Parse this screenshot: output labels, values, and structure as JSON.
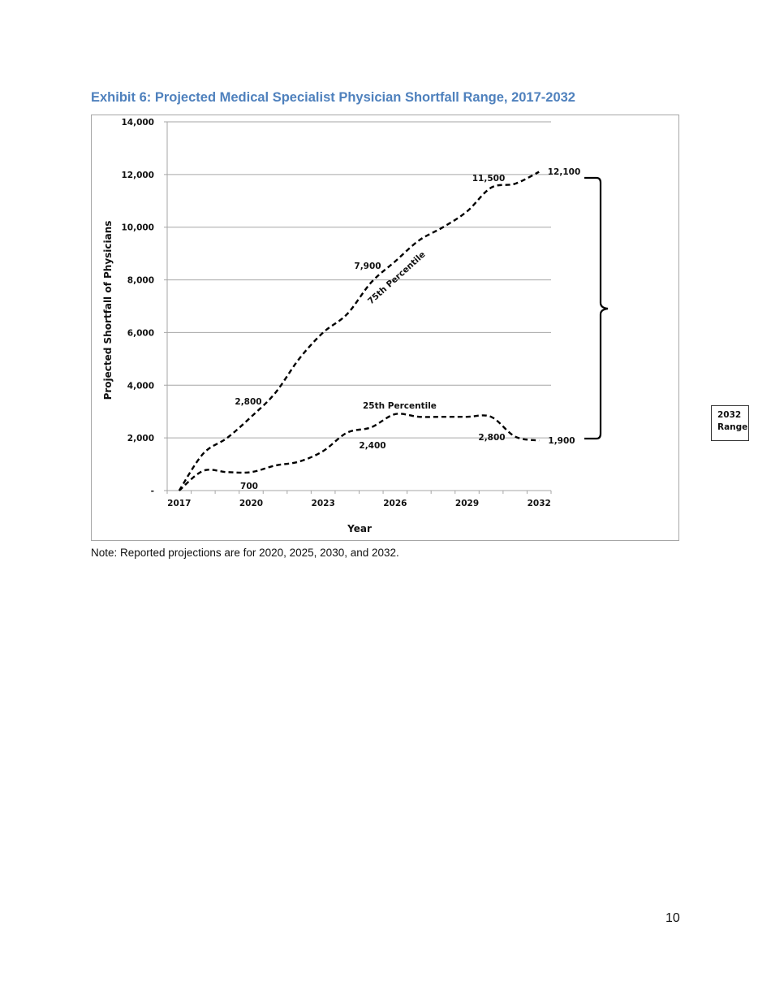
{
  "page": {
    "title": "Exhibit 6: Projected Medical Specialist Physician Shortfall Range, 2017-2032",
    "note": "Note: Reported projections are for 2020, 2025, 2030, and 2032.",
    "page_number": "10"
  },
  "range_box": {
    "line1": "2032",
    "line2": "Range"
  },
  "chart_data": {
    "type": "line",
    "title": "Exhibit 6: Projected Medical Specialist Physician Shortfall Range, 2017-2032",
    "xlabel": "Year",
    "ylabel": "Projected Shortfall of Physicians",
    "ylim": [
      0,
      14000
    ],
    "grid": true,
    "legend": "none (series labeled inline)",
    "x": [
      2017,
      2018,
      2019,
      2020,
      2021,
      2022,
      2023,
      2024,
      2025,
      2026,
      2027,
      2028,
      2029,
      2030,
      2031,
      2032
    ],
    "x_tick_labels": [
      "2017",
      "2020",
      "2023",
      "2026",
      "2029",
      "2032"
    ],
    "y_tick_labels": [
      "-",
      "2,000",
      "4,000",
      "6,000",
      "8,000",
      "10,000",
      "12,000",
      "14,000"
    ],
    "y_ticks": [
      0,
      2000,
      4000,
      6000,
      8000,
      10000,
      12000,
      14000
    ],
    "series": [
      {
        "name": "75th Percentile",
        "style": "dashed",
        "values": [
          0,
          1400,
          2000,
          2800,
          3700,
          5000,
          6000,
          6700,
          7900,
          8700,
          9500,
          10000,
          10600,
          11500,
          11650,
          12100
        ]
      },
      {
        "name": "25th Percentile",
        "style": "dashed",
        "values": [
          0,
          750,
          700,
          700,
          950,
          1100,
          1500,
          2200,
          2400,
          2900,
          2800,
          2800,
          2800,
          2800,
          2050,
          1900
        ]
      }
    ],
    "annotations": [
      {
        "text": "2,800",
        "x": 2020,
        "series": "75th Percentile"
      },
      {
        "text": "7,900",
        "x": 2025,
        "series": "75th Percentile"
      },
      {
        "text": "11,500",
        "x": 2030,
        "series": "75th Percentile"
      },
      {
        "text": "12,100",
        "x": 2032,
        "series": "75th Percentile"
      },
      {
        "text": "700",
        "x": 2020,
        "series": "25th Percentile"
      },
      {
        "text": "2,400",
        "x": 2025,
        "series": "25th Percentile"
      },
      {
        "text": "2,800",
        "x": 2030,
        "series": "25th Percentile"
      },
      {
        "text": "1,900",
        "x": 2032,
        "series": "25th Percentile"
      },
      {
        "text": "75th Percentile",
        "type": "series-label"
      },
      {
        "text": "25th Percentile",
        "type": "series-label"
      },
      {
        "text": "2032 Range",
        "type": "bracket-label",
        "spans": [
          1900,
          12100
        ]
      }
    ]
  }
}
